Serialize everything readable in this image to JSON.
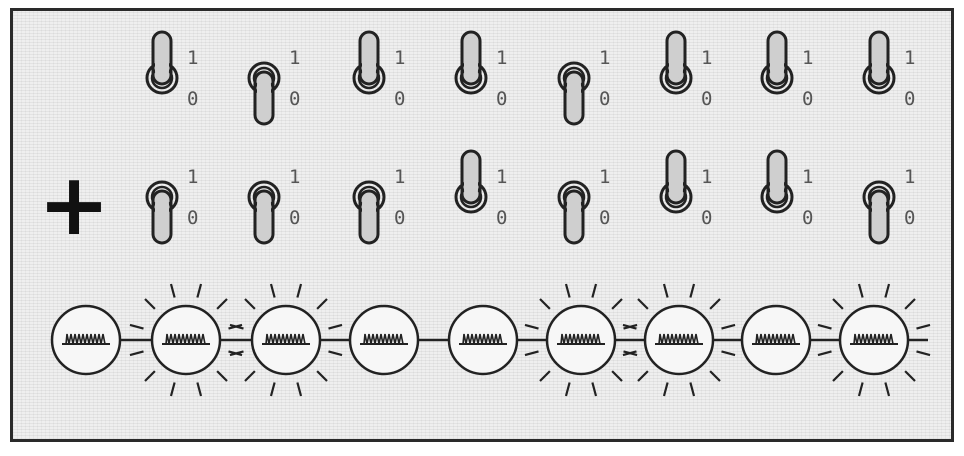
{
  "operator": "+",
  "switch_labels": {
    "on": "1",
    "off": "0"
  },
  "rows": {
    "top": [
      1,
      0,
      1,
      1,
      0,
      1,
      1,
      1
    ],
    "bottom": [
      0,
      0,
      0,
      1,
      0,
      1,
      1,
      0
    ]
  },
  "bulbs": {
    "lit": [
      0,
      1,
      1,
      0,
      0,
      1,
      1,
      0,
      1
    ],
    "filament_icon": "filament-squiggle-icon"
  },
  "colors": {
    "ink": "#222222",
    "paper": "#efefef",
    "lever_fill": "#cfcfcf",
    "bulb_fill": "#f7f7f7"
  }
}
